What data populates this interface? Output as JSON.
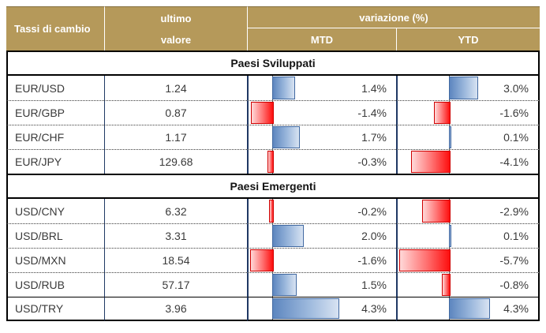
{
  "table": {
    "header": {
      "title": "Tassi di cambio",
      "value_line1": "ultimo",
      "value_line2": "valore",
      "change": "variazione (%)",
      "mtd": "MTD",
      "ytd": "YTD"
    },
    "sections": [
      {
        "title": "Paesi Sviluppati",
        "rows": [
          {
            "pair": "EUR/USD",
            "value": "1.24",
            "mtd": 1.4,
            "mtd_label": "1.4%",
            "ytd": 3.0,
            "ytd_label": "3.0%"
          },
          {
            "pair": "EUR/GBP",
            "value": "0.87",
            "mtd": -1.4,
            "mtd_label": "-1.4%",
            "ytd": -1.6,
            "ytd_label": "-1.6%"
          },
          {
            "pair": "EUR/CHF",
            "value": "1.17",
            "mtd": 1.7,
            "mtd_label": "1.7%",
            "ytd": 0.1,
            "ytd_label": "0.1%"
          },
          {
            "pair": "EUR/JPY",
            "value": "129.68",
            "mtd": -0.3,
            "mtd_label": "-0.3%",
            "ytd": -4.1,
            "ytd_label": "-4.1%"
          }
        ]
      },
      {
        "title": "Paesi Emergenti",
        "rows": [
          {
            "pair": "USD/CNY",
            "value": "6.32",
            "mtd": -0.2,
            "mtd_label": "-0.2%",
            "ytd": -2.9,
            "ytd_label": "-2.9%"
          },
          {
            "pair": "USD/BRL",
            "value": "3.31",
            "mtd": 2.0,
            "mtd_label": "2.0%",
            "ytd": 0.1,
            "ytd_label": "0.1%"
          },
          {
            "pair": "USD/MXN",
            "value": "18.54",
            "mtd": -1.6,
            "mtd_label": "-1.6%",
            "ytd": -5.7,
            "ytd_label": "-5.7%"
          },
          {
            "pair": "USD/RUB",
            "value": "57.17",
            "mtd": 1.5,
            "mtd_label": "1.5%",
            "ytd": -0.8,
            "ytd_label": "-0.8%"
          },
          {
            "pair": "USD/TRY",
            "value": "3.96",
            "mtd": 4.3,
            "mtd_label": "4.3%",
            "ytd": 4.3,
            "ytd_label": "4.3%"
          }
        ]
      }
    ]
  },
  "colors": {
    "header_bg": "#b5995a",
    "header_text": "#ffffff",
    "divider_navy": "#1f3864",
    "bar_positive_fill_start": "#5d86bf",
    "bar_positive_fill_end": "#d8e3f2",
    "bar_positive_border": "#4169a1",
    "bar_negative_fill_start": "#fd0e0e",
    "bar_negative_fill_end": "#ffd9d9",
    "bar_negative_border": "#cf0000"
  },
  "chart_data": {
    "type": "table",
    "title": "Tassi di cambio",
    "columns": [
      "Tassi di cambio",
      "ultimo valore",
      "variazione (%) MTD",
      "variazione (%) YTD"
    ],
    "sections": [
      {
        "section": "Paesi Sviluppati",
        "rows": [
          {
            "pair": "EUR/USD",
            "ultimo_valore": 1.24,
            "mtd_pct": 1.4,
            "ytd_pct": 3.0
          },
          {
            "pair": "EUR/GBP",
            "ultimo_valore": 0.87,
            "mtd_pct": -1.4,
            "ytd_pct": -1.6
          },
          {
            "pair": "EUR/CHF",
            "ultimo_valore": 1.17,
            "mtd_pct": 1.7,
            "ytd_pct": 0.1
          },
          {
            "pair": "EUR/JPY",
            "ultimo_valore": 129.68,
            "mtd_pct": -0.3,
            "ytd_pct": -4.1
          }
        ]
      },
      {
        "section": "Paesi Emergenti",
        "rows": [
          {
            "pair": "USD/CNY",
            "ultimo_valore": 6.32,
            "mtd_pct": -0.2,
            "ytd_pct": -2.9
          },
          {
            "pair": "USD/BRL",
            "ultimo_valore": 3.31,
            "mtd_pct": 2.0,
            "ytd_pct": 0.1
          },
          {
            "pair": "USD/MXN",
            "ultimo_valore": 18.54,
            "mtd_pct": -1.6,
            "ytd_pct": -5.7
          },
          {
            "pair": "USD/RUB",
            "ultimo_valore": 57.17,
            "mtd_pct": 1.5,
            "ytd_pct": -0.8
          },
          {
            "pair": "USD/TRY",
            "ultimo_valore": 3.96,
            "mtd_pct": 4.3,
            "ytd_pct": 4.3
          }
        ]
      }
    ],
    "layout_hints": {
      "data_bars": "Excel-style gradient data bars inside MTD and YTD cells",
      "positive_bar_color": "blue gradient, grows right from dashed zero axis",
      "negative_bar_color": "red gradient, grows left from dashed zero axis",
      "row_separators": "dotted",
      "section_separators": "solid black"
    }
  }
}
